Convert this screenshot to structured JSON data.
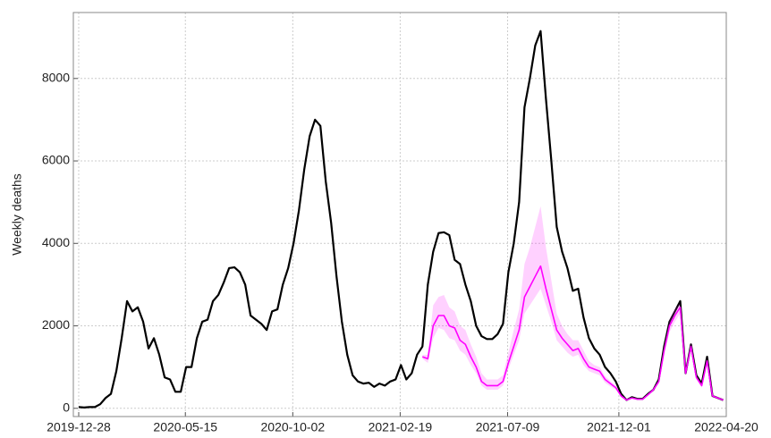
{
  "chart_data": {
    "type": "line",
    "y_label": "Weekly deaths",
    "xlim": [
      "2019-12-21",
      "2022-04-20"
    ],
    "xticks": [
      "2019-12-28",
      "2020-05-15",
      "2020-10-02",
      "2021-02-19",
      "2021-07-09",
      "2021-12-01",
      "2022-04-20"
    ],
    "ylim": [
      -200,
      9600
    ],
    "yticks": [
      0,
      2000,
      4000,
      6000,
      8000
    ],
    "grid": true,
    "x": [
      "2019-12-28",
      "2020-01-04",
      "2020-01-11",
      "2020-01-18",
      "2020-01-25",
      "2020-02-01",
      "2020-02-08",
      "2020-02-15",
      "2020-02-22",
      "2020-02-29",
      "2020-03-07",
      "2020-03-14",
      "2020-03-21",
      "2020-03-28",
      "2020-04-04",
      "2020-04-11",
      "2020-04-18",
      "2020-04-25",
      "2020-05-02",
      "2020-05-09",
      "2020-05-16",
      "2020-05-23",
      "2020-05-30",
      "2020-06-06",
      "2020-06-13",
      "2020-06-20",
      "2020-06-27",
      "2020-07-04",
      "2020-07-11",
      "2020-07-18",
      "2020-07-25",
      "2020-08-01",
      "2020-08-08",
      "2020-08-15",
      "2020-08-22",
      "2020-08-29",
      "2020-09-05",
      "2020-09-12",
      "2020-09-19",
      "2020-09-26",
      "2020-10-03",
      "2020-10-10",
      "2020-10-17",
      "2020-10-24",
      "2020-10-31",
      "2020-11-07",
      "2020-11-14",
      "2020-11-21",
      "2020-11-28",
      "2020-12-05",
      "2020-12-12",
      "2020-12-19",
      "2020-12-26",
      "2021-01-02",
      "2021-01-09",
      "2021-01-16",
      "2021-01-23",
      "2021-01-30",
      "2021-02-06",
      "2021-02-13",
      "2021-02-20",
      "2021-02-27",
      "2021-03-06",
      "2021-03-13",
      "2021-03-20",
      "2021-03-27",
      "2021-04-03",
      "2021-04-10",
      "2021-04-17",
      "2021-04-24",
      "2021-05-01",
      "2021-05-08",
      "2021-05-15",
      "2021-05-22",
      "2021-05-29",
      "2021-06-05",
      "2021-06-12",
      "2021-06-19",
      "2021-06-26",
      "2021-07-03",
      "2021-07-10",
      "2021-07-17",
      "2021-07-24",
      "2021-07-31",
      "2021-08-07",
      "2021-08-14",
      "2021-08-21",
      "2021-08-28",
      "2021-09-04",
      "2021-09-11",
      "2021-09-18",
      "2021-09-25",
      "2021-10-02",
      "2021-10-09",
      "2021-10-16",
      "2021-10-23",
      "2021-10-30",
      "2021-11-06",
      "2021-11-13",
      "2021-11-20",
      "2021-11-27",
      "2021-12-04",
      "2021-12-11",
      "2021-12-18",
      "2021-12-25",
      "2022-01-01",
      "2022-01-08",
      "2022-01-15",
      "2022-01-22",
      "2022-01-29",
      "2022-02-05",
      "2022-02-12",
      "2022-02-19",
      "2022-02-26",
      "2022-03-05",
      "2022-03-12",
      "2022-03-19",
      "2022-03-26",
      "2022-04-02",
      "2022-04-09",
      "2022-04-16"
    ],
    "series": [
      {
        "color": "#000000",
        "values": [
          30,
          20,
          30,
          30,
          100,
          250,
          350,
          900,
          1700,
          2600,
          2350,
          2450,
          2100,
          1450,
          1700,
          1300,
          750,
          700,
          400,
          400,
          1000,
          1000,
          1700,
          2100,
          2150,
          2600,
          2750,
          3050,
          3400,
          3420,
          3300,
          3000,
          2250,
          2150,
          2050,
          1900,
          2350,
          2400,
          3000,
          3400,
          4000,
          4800,
          5800,
          6600,
          7000,
          6850,
          5500,
          4500,
          3200,
          2100,
          1300,
          800,
          650,
          600,
          620,
          520,
          600,
          550,
          650,
          700,
          1050,
          700,
          850,
          1300,
          1500,
          3000,
          3800,
          4250,
          4270,
          4200,
          3600,
          3500,
          3000,
          2600,
          2000,
          1750,
          1680,
          1680,
          1800,
          2050,
          3300,
          4000,
          5000,
          7300,
          8000,
          8800,
          9150,
          7500,
          6000,
          4400,
          3800,
          3400,
          2850,
          2900,
          2200,
          1700,
          1450,
          1300,
          1000,
          850,
          650,
          350,
          200,
          270,
          230,
          230,
          350,
          450,
          700,
          1500,
          2100,
          2350,
          2600,
          850,
          1550,
          800,
          600,
          1250,
          300,
          250,
          200
        ]
      },
      {
        "color": "#ff00ff",
        "values": [
          null,
          null,
          null,
          null,
          null,
          null,
          null,
          null,
          null,
          null,
          null,
          null,
          null,
          null,
          null,
          null,
          null,
          null,
          null,
          null,
          null,
          null,
          null,
          null,
          null,
          null,
          null,
          null,
          null,
          null,
          null,
          null,
          null,
          null,
          null,
          null,
          null,
          null,
          null,
          null,
          null,
          null,
          null,
          null,
          null,
          null,
          null,
          null,
          null,
          null,
          null,
          null,
          null,
          null,
          null,
          null,
          null,
          null,
          null,
          null,
          null,
          null,
          null,
          null,
          1250,
          1200,
          2000,
          2250,
          2250,
          2000,
          1950,
          1650,
          1550,
          1250,
          1000,
          650,
          550,
          550,
          550,
          650,
          1100,
          1500,
          1900,
          2700,
          2950,
          3200,
          3450,
          2900,
          2400,
          1900,
          1700,
          1550,
          1400,
          1450,
          1200,
          1000,
          950,
          900,
          700,
          600,
          500,
          300,
          200,
          250,
          220,
          220,
          330,
          450,
          650,
          1400,
          2000,
          2250,
          2450,
          850,
          1500,
          750,
          550,
          1150,
          300,
          250,
          200
        ],
        "upper": [
          null,
          null,
          null,
          null,
          null,
          null,
          null,
          null,
          null,
          null,
          null,
          null,
          null,
          null,
          null,
          null,
          null,
          null,
          null,
          null,
          null,
          null,
          null,
          null,
          null,
          null,
          null,
          null,
          null,
          null,
          null,
          null,
          null,
          null,
          null,
          null,
          null,
          null,
          null,
          null,
          null,
          null,
          null,
          null,
          null,
          null,
          null,
          null,
          null,
          null,
          null,
          null,
          null,
          null,
          null,
          null,
          null,
          null,
          null,
          null,
          null,
          null,
          null,
          null,
          1300,
          1300,
          2500,
          2700,
          2750,
          2450,
          2350,
          2000,
          1900,
          1550,
          1250,
          850,
          700,
          700,
          700,
          800,
          1350,
          1900,
          2400,
          3500,
          3900,
          4400,
          4900,
          3900,
          3100,
          2300,
          2000,
          1800,
          1650,
          1650,
          1400,
          1150,
          1050,
          1000,
          780,
          660,
          550,
          330,
          220,
          270,
          240,
          240,
          360,
          490,
          700,
          1500,
          2150,
          2400,
          2550,
          900,
          1600,
          800,
          600,
          1250,
          330,
          270,
          220
        ],
        "lower": [
          null,
          null,
          null,
          null,
          null,
          null,
          null,
          null,
          null,
          null,
          null,
          null,
          null,
          null,
          null,
          null,
          null,
          null,
          null,
          null,
          null,
          null,
          null,
          null,
          null,
          null,
          null,
          null,
          null,
          null,
          null,
          null,
          null,
          null,
          null,
          null,
          null,
          null,
          null,
          null,
          null,
          null,
          null,
          null,
          null,
          null,
          null,
          null,
          null,
          null,
          null,
          null,
          null,
          null,
          null,
          null,
          null,
          null,
          null,
          null,
          null,
          null,
          null,
          null,
          1200,
          1100,
          1700,
          1950,
          1900,
          1700,
          1650,
          1400,
          1300,
          1050,
          850,
          550,
          450,
          450,
          450,
          550,
          950,
          1300,
          1650,
          2300,
          2500,
          2700,
          2900,
          2500,
          2100,
          1650,
          1500,
          1350,
          1250,
          1300,
          1050,
          900,
          850,
          800,
          620,
          530,
          450,
          270,
          180,
          230,
          200,
          200,
          300,
          410,
          600,
          1300,
          1850,
          2100,
          2300,
          780,
          1400,
          700,
          500,
          1050,
          270,
          230,
          180
        ]
      }
    ]
  }
}
